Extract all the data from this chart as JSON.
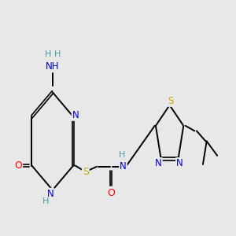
{
  "bg_color": "#e8e8e8",
  "atom_colors": {
    "C": "#000000",
    "N": "#0000cd",
    "O": "#ff0000",
    "S": "#ccaa00",
    "H": "#4a9a9a"
  }
}
